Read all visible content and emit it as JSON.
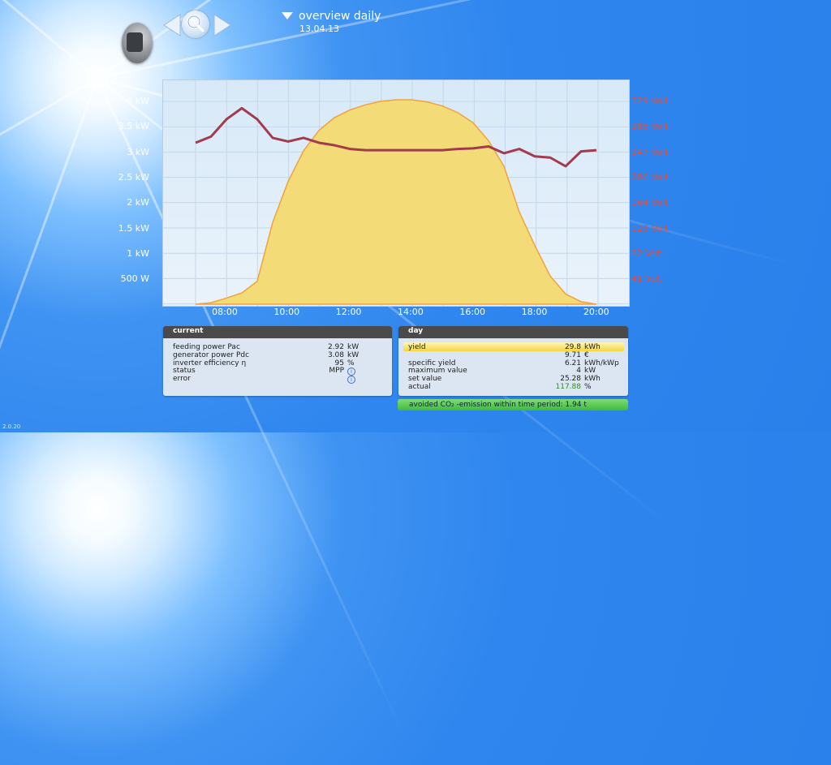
{
  "header": {
    "title": "overview daily",
    "date": "13.04.13"
  },
  "chart": {
    "y_left_labels": [
      "4 kW",
      "3.5 kW",
      "3 kW",
      "2.5 kW",
      "2 kW",
      "1.5 kW",
      "1 kW",
      "500 W"
    ],
    "y_right_labels": [
      "329 Volt",
      "288 Volt",
      "247 Volt",
      "206 Volt",
      "164 Volt",
      "123 Volt",
      "82 Volt",
      "41 Volt"
    ],
    "x_labels": [
      "08:00",
      "10:00",
      "12:00",
      "14:00",
      "16:00",
      "18:00",
      "20:00"
    ]
  },
  "chart_data": {
    "type": "area",
    "x": [
      "07:00",
      "07:30",
      "08:00",
      "08:30",
      "09:00",
      "09:30",
      "10:00",
      "10:30",
      "11:00",
      "11:30",
      "12:00",
      "12:30",
      "13:00",
      "13:30",
      "14:00",
      "14:30",
      "15:00",
      "15:30",
      "16:00",
      "16:30",
      "17:00",
      "17:30",
      "18:00",
      "18:30",
      "19:00",
      "19:30",
      "20:00"
    ],
    "series": [
      {
        "values": [
          0.0,
          0.03,
          0.12,
          0.22,
          0.45,
          1.6,
          2.4,
          3.0,
          3.4,
          3.65,
          3.8,
          3.9,
          3.97,
          4.0,
          4.0,
          3.96,
          3.88,
          3.75,
          3.55,
          3.2,
          2.7,
          1.8,
          1.15,
          0.55,
          0.2,
          0.05,
          0.0
        ]
      },
      {
        "values": [
          262,
          272,
          300,
          318,
          300,
          270,
          264,
          270,
          262,
          258,
          252,
          250,
          250,
          250,
          250,
          250,
          250,
          252,
          253,
          256,
          245,
          252,
          240,
          238,
          224,
          248,
          250
        ]
      }
    ],
    "colors": {
      "area_fill": "#f3dc78",
      "area_stroke": "#f2a23a",
      "line": "#a33b4c"
    },
    "grid": true
  },
  "current": {
    "title": "current",
    "rows": [
      {
        "label": "feeding power Pac",
        "value": "2.92",
        "unit": "kW"
      },
      {
        "label": "generator power Pdc",
        "value": "3.08",
        "unit": "kW"
      },
      {
        "label": "inverter efficiency η",
        "value": "95",
        "unit": "%"
      },
      {
        "label": "status",
        "value": "MPP",
        "unit": "i"
      },
      {
        "label": "error",
        "value": "",
        "unit": "i"
      }
    ]
  },
  "day": {
    "title": "day",
    "rows": [
      {
        "label": "yield",
        "value": "29.8",
        "unit": "kWh"
      },
      {
        "label": "",
        "value": "9.71",
        "unit": "€"
      },
      {
        "label": "specific yield",
        "value": "6.21",
        "unit": "kWh/kWp"
      },
      {
        "label": "maximum value",
        "value": "4",
        "unit": "kW"
      },
      {
        "label": "set value",
        "value": "25.28",
        "unit": "kWh"
      },
      {
        "label": "actual",
        "value": "117.88",
        "unit": "%"
      }
    ],
    "actual_color": "#2f8f1f"
  },
  "co2": {
    "label": "avoided CO₂ -emission within time period: 1.94 t"
  },
  "version": "2.0.20"
}
